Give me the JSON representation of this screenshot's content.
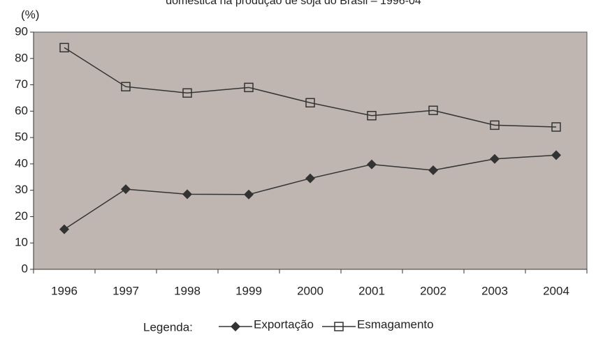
{
  "chart_data": {
    "type": "line",
    "title": "doméstica na produção de soja do Brasil – 1996-04",
    "ylabel": "(%)",
    "legend_title": "Legenda:",
    "categories": [
      "1996",
      "1997",
      "1998",
      "1999",
      "2000",
      "2001",
      "2002",
      "2003",
      "2004"
    ],
    "series": [
      {
        "name": "Exportação",
        "color": "#333333",
        "marker": "diamond",
        "values": [
          15.2,
          30.4,
          28.5,
          28.4,
          34.5,
          39.8,
          37.6,
          41.9,
          43.3
        ]
      },
      {
        "name": "Esmagamento",
        "color": "#333333",
        "marker": "square",
        "values": [
          84.1,
          69.3,
          66.9,
          69.0,
          63.2,
          58.3,
          60.3,
          54.7,
          54.0
        ]
      }
    ],
    "ylim": [
      0,
      90
    ],
    "yticks": [
      0,
      10,
      20,
      30,
      40,
      50,
      60,
      70,
      80,
      90
    ],
    "plot_background": "#c0b6b1",
    "legend_position": "bottom"
  }
}
